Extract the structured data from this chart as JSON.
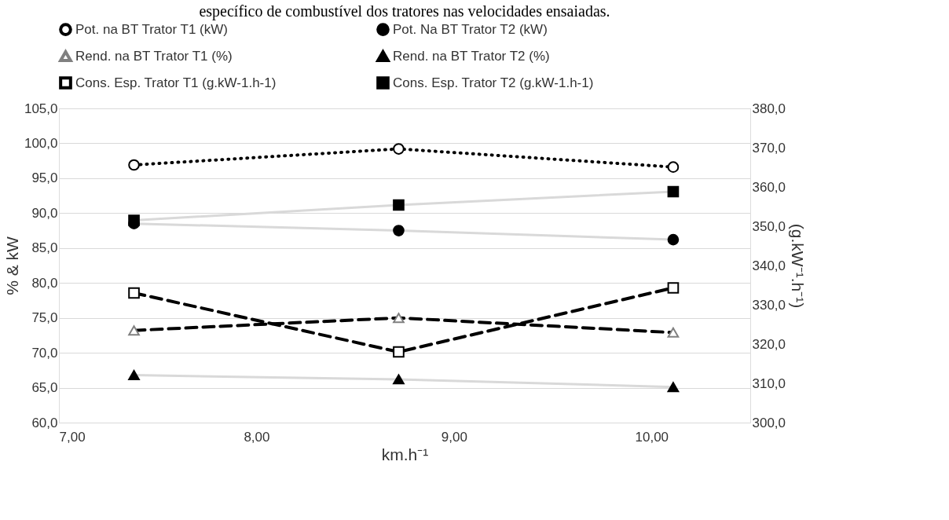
{
  "chart_data": {
    "type": "line",
    "title": "específico de combustível dos tratores nas velocidades ensaiadas.",
    "xlabel": "km.h⁻¹",
    "ylabel": "% & kW",
    "y2label": "(g.kW⁻¹.h⁻¹)",
    "x": [
      7.38,
      8.72,
      10.11
    ],
    "xlim": [
      7,
      10.5
    ],
    "xticks": [
      {
        "value": 7,
        "label": "7,00"
      },
      {
        "value": 8,
        "label": "8,00"
      },
      {
        "value": 9,
        "label": "9,00"
      },
      {
        "value": 10,
        "label": "10,00"
      }
    ],
    "ylim": [
      60,
      105
    ],
    "yticks": [
      {
        "value": 60,
        "label": "60,0"
      },
      {
        "value": 65,
        "label": "65,0"
      },
      {
        "value": 70,
        "label": "70,0"
      },
      {
        "value": 75,
        "label": "75,0"
      },
      {
        "value": 80,
        "label": "80,0"
      },
      {
        "value": 85,
        "label": "85,0"
      },
      {
        "value": 90,
        "label": "90,0"
      },
      {
        "value": 95,
        "label": "95,0"
      },
      {
        "value": 100,
        "label": "100,0"
      },
      {
        "value": 105,
        "label": "105,0"
      }
    ],
    "y2lim": [
      300,
      380
    ],
    "y2ticks": [
      {
        "value": 300,
        "label": "300,0"
      },
      {
        "value": 310,
        "label": "310,0"
      },
      {
        "value": 320,
        "label": "320,0"
      },
      {
        "value": 330,
        "label": "330,0"
      },
      {
        "value": 340,
        "label": "340,0"
      },
      {
        "value": 350,
        "label": "350,0"
      },
      {
        "value": 360,
        "label": "360,0"
      },
      {
        "value": 370,
        "label": "370,0"
      },
      {
        "value": 380,
        "label": "380,0"
      }
    ],
    "grid": "y",
    "legend": "top",
    "series": [
      {
        "name": "Pot. na BT Trator T1 (kW)",
        "color": "#000000",
        "marker": "circle",
        "line_style": "dotted",
        "values": [
          96.9,
          99.2,
          96.6
        ]
      },
      {
        "name": "Pot. Na BT Trator T2 (kW)",
        "color": "#d9d9d9",
        "marker": "circle",
        "line_style": "solid",
        "values": [
          88.5,
          87.5,
          86.2
        ]
      },
      {
        "name": "Rend. na BT Trator T1 (%)",
        "color": "#000000",
        "marker": "triangle",
        "line_style": "dashed",
        "values": [
          73.2,
          75.0,
          72.9
        ]
      },
      {
        "name": "Rend. na BT Trator T2 (%)",
        "color": "#d9d9d9",
        "marker": "triangle",
        "line_style": "solid",
        "values": [
          66.8,
          66.2,
          65.1
        ]
      },
      {
        "name": "Cons. Esp. Trator T1 (g.kW-1.h-1)",
        "color": "#000000",
        "marker": "square",
        "line_style": "dashed",
        "axis": "y2",
        "values": [
          333.0,
          318.0,
          334.3
        ]
      },
      {
        "name": "Cons. Esp. Trator T2 (g.kW-1.h-1)",
        "color": "#d9d9d9",
        "marker": "square",
        "line_style": "solid",
        "axis": "y2",
        "values": [
          351.5,
          355.4,
          358.8
        ]
      }
    ]
  }
}
